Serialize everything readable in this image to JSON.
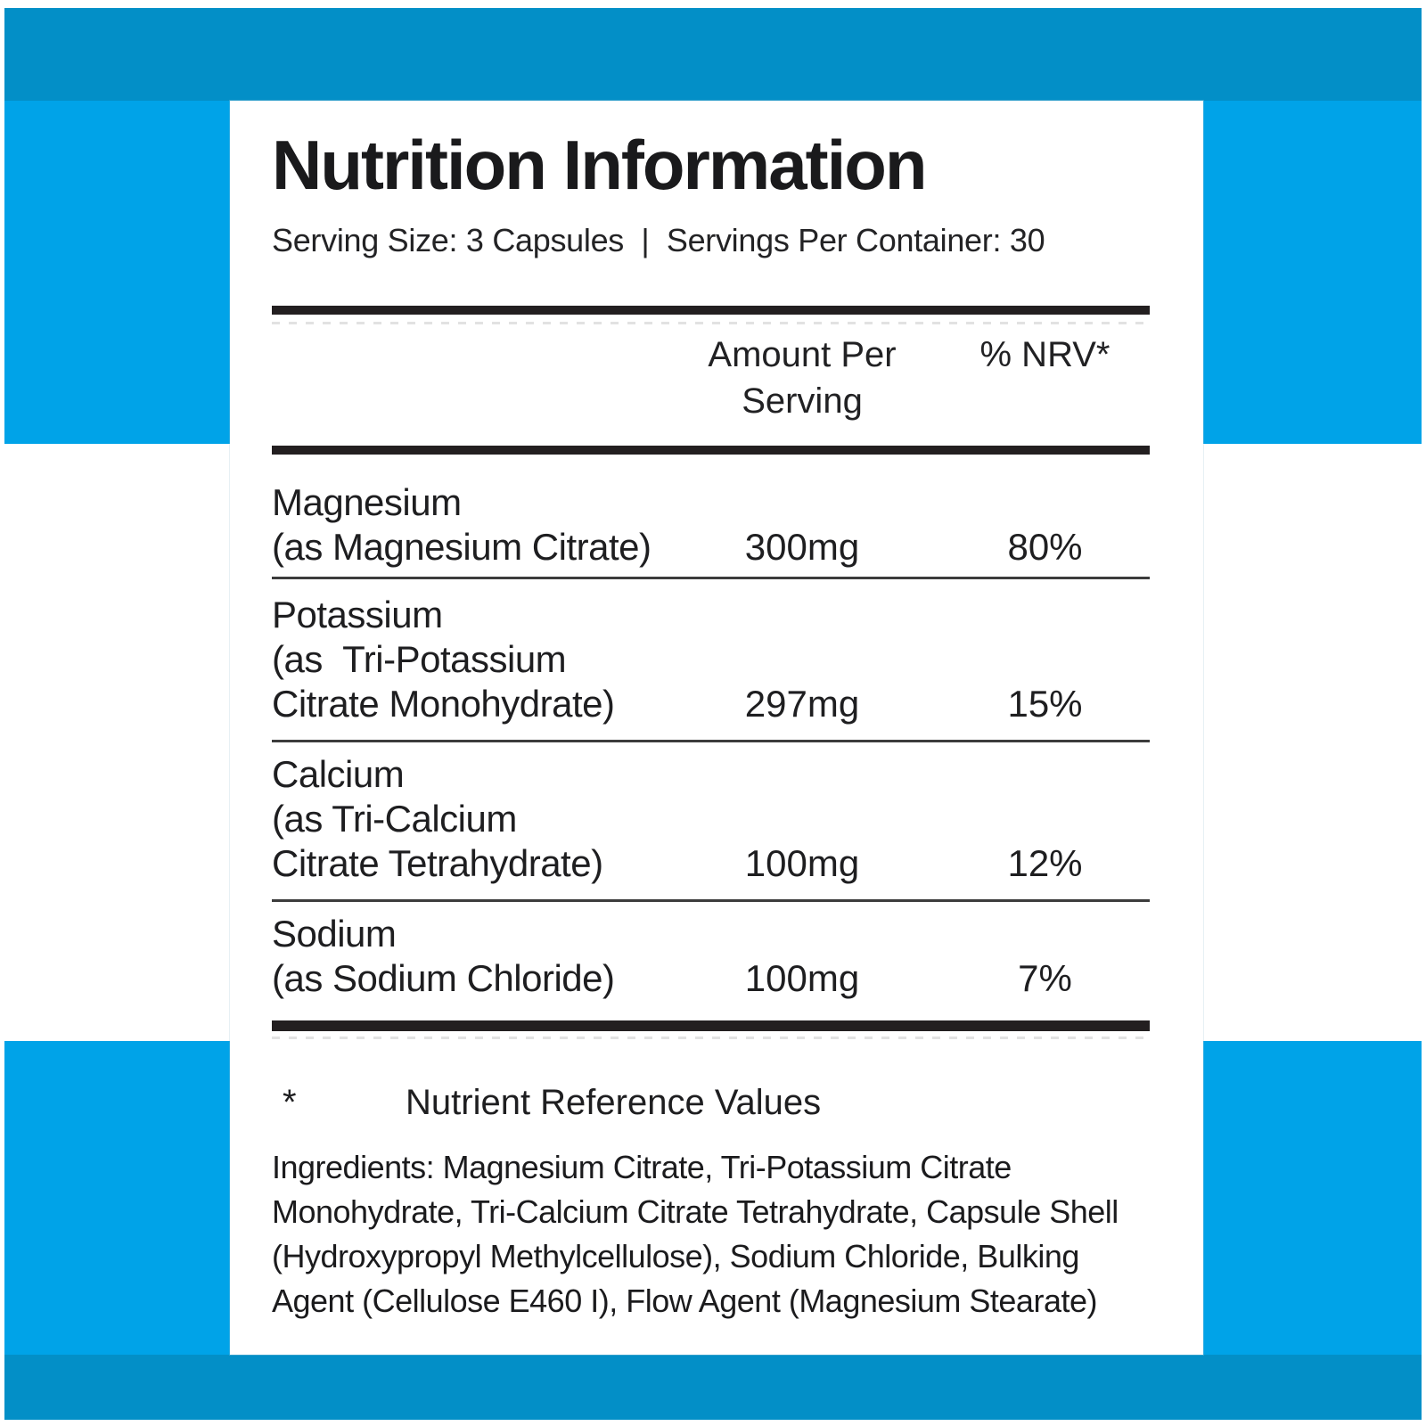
{
  "colors": {
    "band_dark": "#038FC7",
    "band_light": "#00A3E8",
    "text": "#1E1E20",
    "rule": "#231F20"
  },
  "header": {
    "title": "Nutrition Information",
    "serving_line": "Serving Size: 3 Capsules  |  Servings Per Container: 30"
  },
  "table": {
    "amount_header_line1": "Amount Per",
    "amount_header_line2": "Serving",
    "nrv_header": "% NRV*",
    "rows": [
      {
        "name_lines": [
          "Magnesium",
          "(as Magnesium Citrate)"
        ],
        "amount": "300mg",
        "nrv": "80%"
      },
      {
        "name_lines": [
          "Potassium",
          "(as  Tri-Potassium",
          "Citrate Monohydrate)"
        ],
        "amount": "297mg",
        "nrv": "15%"
      },
      {
        "name_lines": [
          "Calcium",
          "(as Tri-Calcium",
          "Citrate Tetrahydrate)"
        ],
        "amount": "100mg",
        "nrv": "12%"
      },
      {
        "name_lines": [
          "Sodium",
          "(as Sodium Chloride)"
        ],
        "amount": "100mg",
        "nrv": "7%"
      }
    ]
  },
  "footnote": {
    "marker": "*",
    "text": "Nutrient Reference Values"
  },
  "ingredients": {
    "lines": [
      "Ingredients: Magnesium Citrate, Tri-Potassium Citrate",
      "Monohydrate, Tri-Calcium Citrate Tetrahydrate, Capsule Shell",
      "(Hydroxypropyl Methylcellulose), Sodium Chloride, Bulking",
      "Agent (Cellulose E460 I), Flow Agent (Magnesium Stearate)"
    ]
  }
}
